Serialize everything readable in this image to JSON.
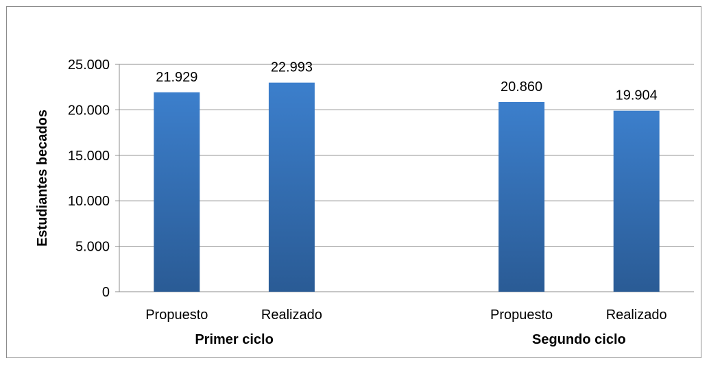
{
  "chart_data": {
    "type": "bar",
    "ylabel": "Estudiantes becados",
    "ylim": [
      0,
      25000
    ],
    "y_ticks": [
      0,
      5000,
      10000,
      15000,
      20000,
      25000
    ],
    "y_tick_labels": [
      "0",
      "5.000",
      "10.000",
      "15.000",
      "20.000",
      "25.000"
    ],
    "grid": true,
    "legend": "none",
    "groups": [
      {
        "name": "Primer ciclo",
        "categories": [
          "Propuesto",
          "Realizado"
        ],
        "values": [
          21929,
          22993
        ],
        "value_labels": [
          "21.929",
          "22.993"
        ]
      },
      {
        "name": "Segundo ciclo",
        "categories": [
          "Propuesto",
          "Realizado"
        ],
        "values": [
          20860,
          19904
        ],
        "value_labels": [
          "20.860",
          "19.904"
        ]
      }
    ],
    "colors": {
      "bar_top": "#3c7fcc",
      "bar_bottom": "#2a5b95",
      "grid": "#8c8c8c"
    }
  }
}
